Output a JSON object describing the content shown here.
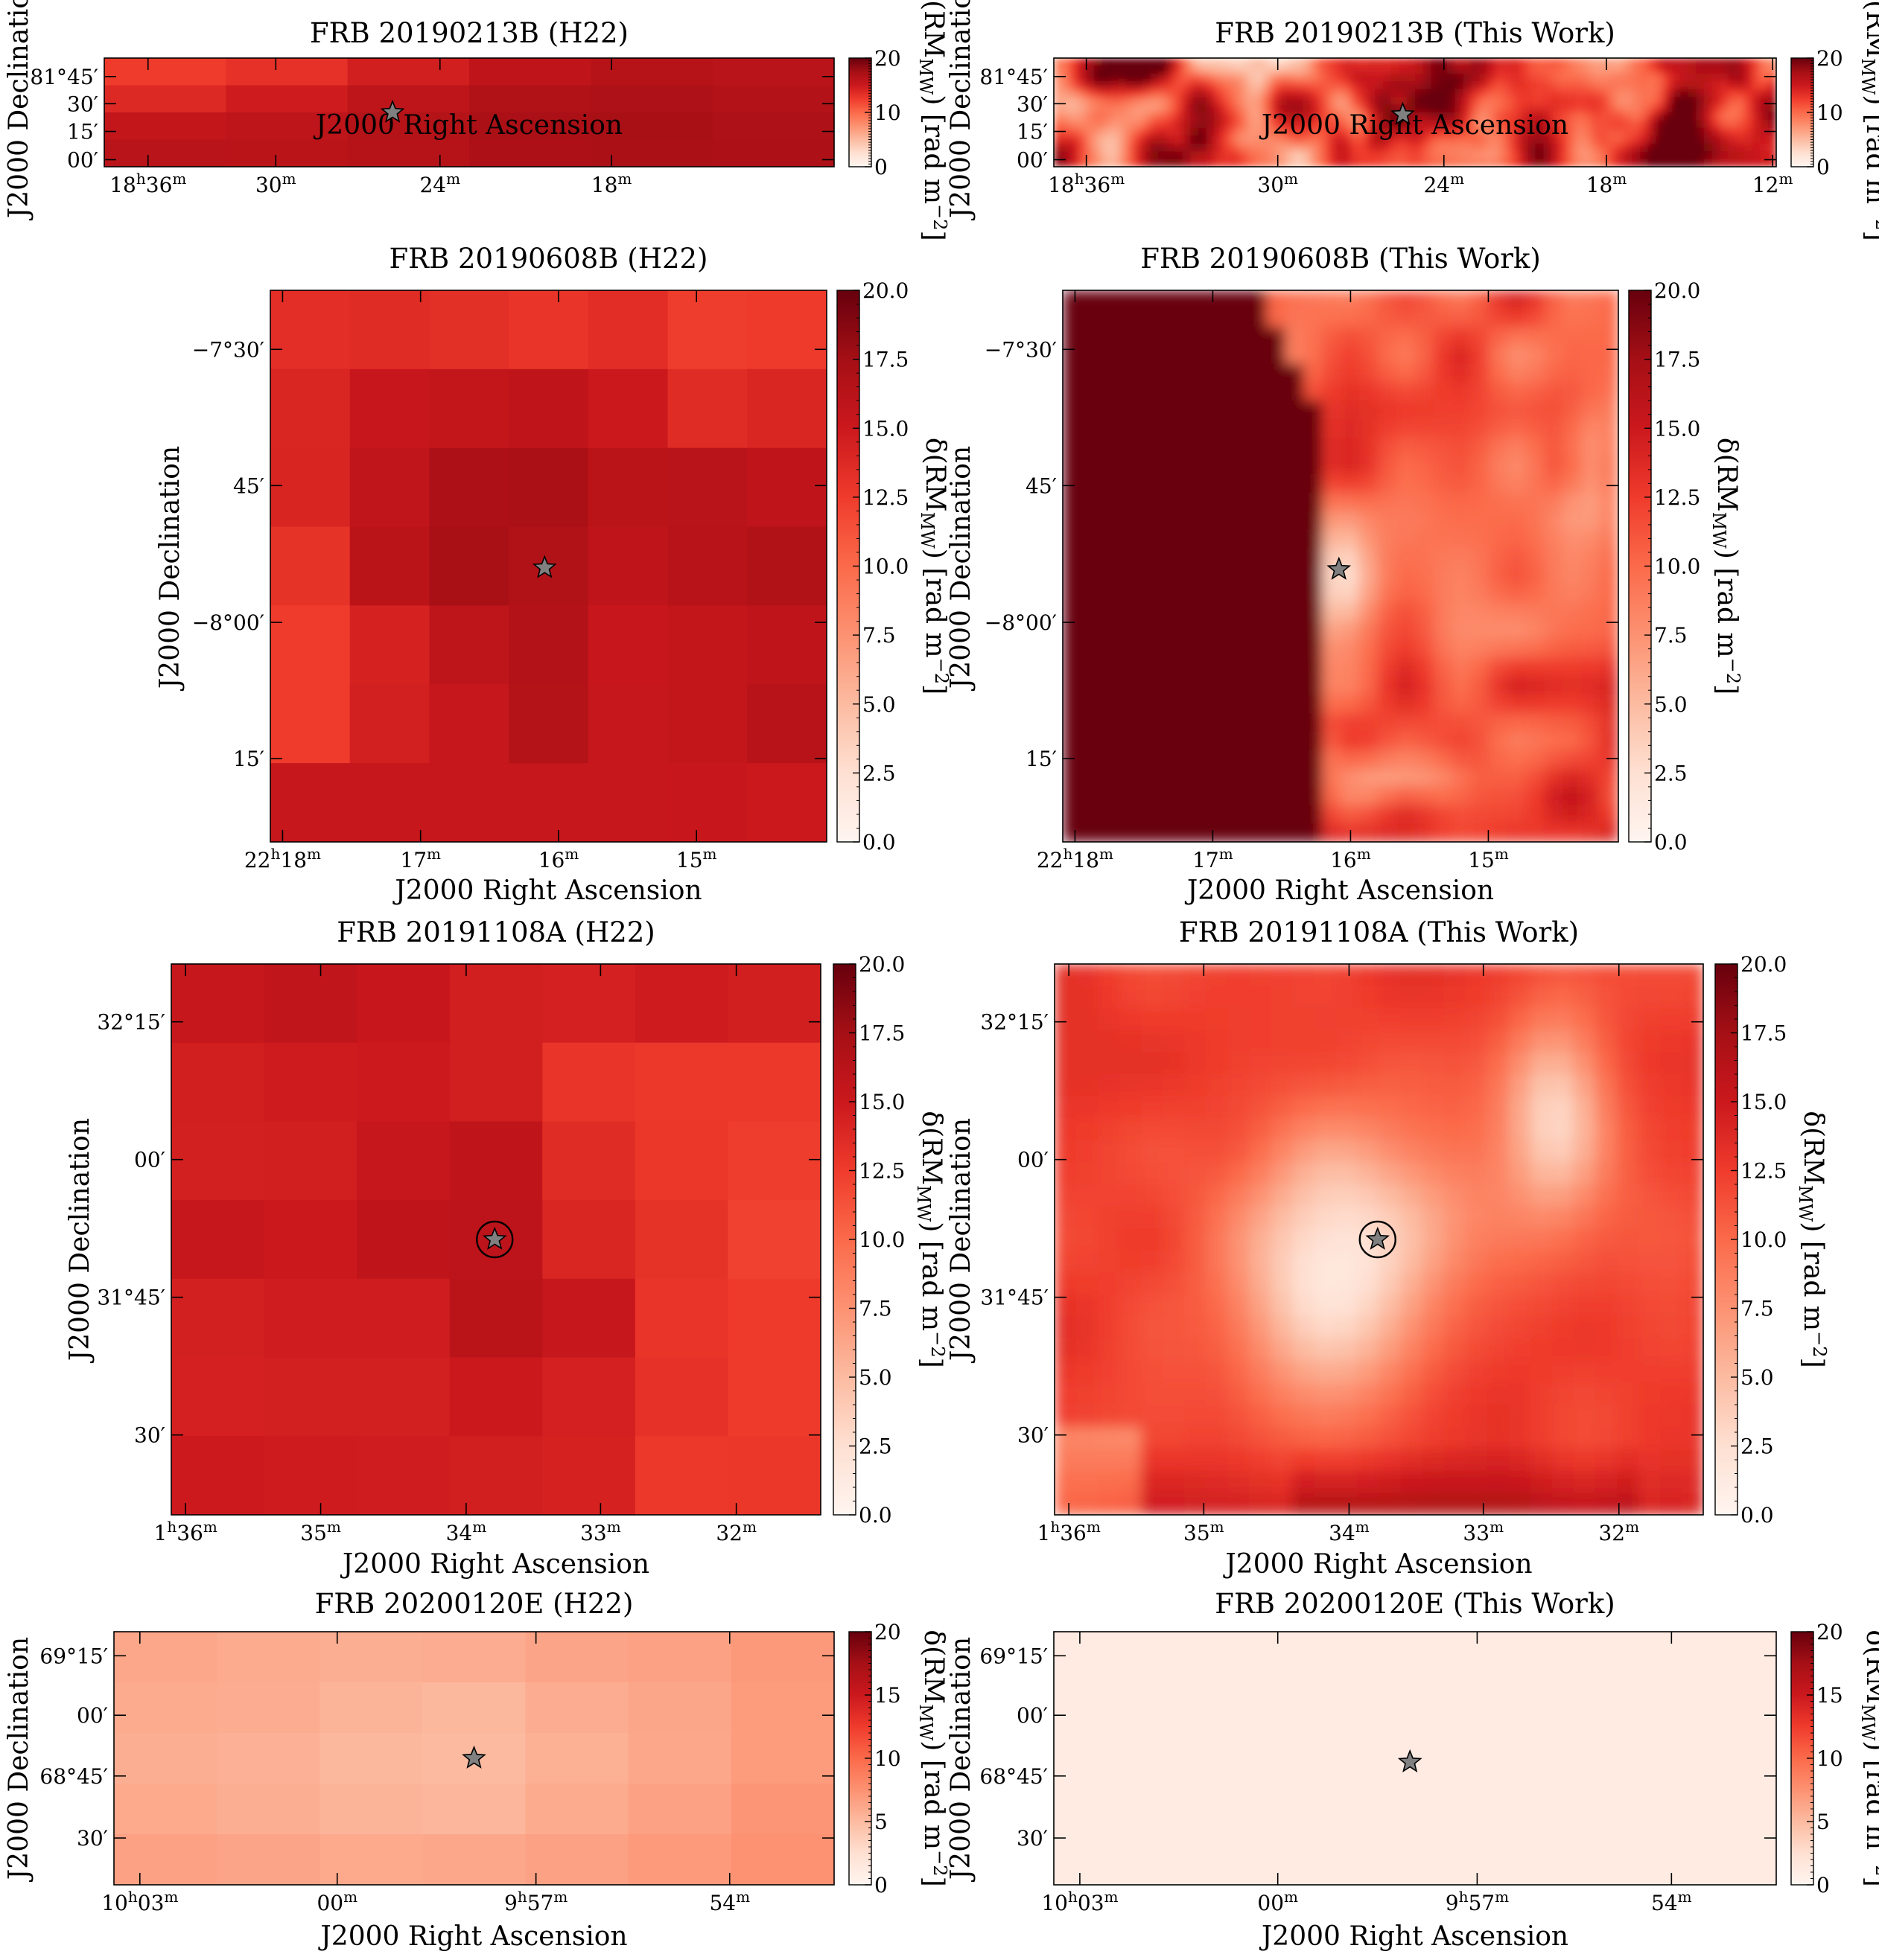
{
  "figure": {
    "colormap": "Reds",
    "colors": {
      "cmap_low": "#fff5f0",
      "cmap_high": "#67000d",
      "star_fill": "#808080",
      "axis": "#000000"
    },
    "x_axis_label": "J2000 Right Ascension",
    "y_axis_label": "J2000 Declination",
    "colorbar_label": "δ(RM_MW) [rad m⁻²]"
  },
  "chart_data": [
    {
      "type": "heatmap",
      "title": "FRB 20190213B (H22)",
      "source": "H22",
      "grid": [
        6,
        4
      ],
      "smooth": false,
      "fill": "block-field",
      "vmin": 0,
      "vmax": 20,
      "x_ticks": [
        "18h36m",
        "30m",
        "24m",
        "18m"
      ],
      "y_ticks": [
        "81°45′",
        "30′",
        "15′",
        "00′"
      ],
      "cbar_ticks": [
        "0",
        "10",
        "20"
      ],
      "values": [
        [
          12.5,
          13.2,
          14.6,
          15.8,
          16.4,
          16.2
        ],
        [
          13.8,
          14.8,
          15.9,
          16.7,
          16.9,
          16.6
        ],
        [
          15.6,
          15.9,
          16.5,
          17.1,
          17.3,
          16.9
        ],
        [
          16.2,
          16.1,
          16.4,
          17.0,
          17.2,
          17.0
        ]
      ],
      "circle": false
    },
    {
      "type": "heatmap",
      "title": "FRB 20190213B (This Work)",
      "source": "This Work",
      "grid": [
        90,
        14
      ],
      "smooth": true,
      "fill": "noise",
      "vmin": 0,
      "vmax": 20,
      "x_ticks": [
        "18h36m",
        "30m",
        "24m",
        "18m",
        "12m"
      ],
      "y_ticks": [
        "81°45′",
        "30′",
        "15′",
        "00′"
      ],
      "cbar_ticks": [
        "0",
        "10",
        "20"
      ],
      "circle": false
    },
    {
      "type": "heatmap",
      "title": "FRB 20190608B (H22)",
      "source": "H22",
      "grid": [
        7,
        7
      ],
      "smooth": false,
      "fill": "table",
      "vmin": 0,
      "vmax": 20,
      "x_ticks": [
        "22h18m",
        "17m",
        "16m",
        "15m"
      ],
      "y_ticks": [
        "−7°30′",
        "45′",
        "−8°00′",
        "15′"
      ],
      "cbar_ticks": [
        "0.0",
        "2.5",
        "5.0",
        "7.5",
        "10.0",
        "12.5",
        "15.0",
        "17.5",
        "20.0"
      ],
      "values": [
        [
          13.4,
          13.6,
          13.3,
          13.0,
          13.5,
          12.4,
          12.6
        ],
        [
          14.0,
          15.2,
          15.6,
          15.8,
          15.0,
          13.6,
          14.0
        ],
        [
          14.1,
          15.7,
          17.0,
          17.1,
          16.1,
          16.2,
          15.8
        ],
        [
          13.1,
          16.1,
          17.3,
          16.7,
          15.8,
          16.3,
          16.7
        ],
        [
          12.5,
          14.3,
          15.9,
          16.6,
          15.2,
          15.6,
          15.8
        ],
        [
          12.5,
          14.5,
          15.3,
          16.5,
          15.3,
          15.6,
          16.3
        ],
        [
          15.4,
          15.4,
          15.4,
          15.4,
          15.4,
          15.2,
          15.0
        ]
      ],
      "circle": false
    },
    {
      "type": "heatmap",
      "title": "FRB 20190608B (This Work)",
      "source": "This Work",
      "grid": [
        30,
        30
      ],
      "smooth": true,
      "fill": "field",
      "vmin": 0,
      "vmax": 20,
      "x_ticks": [
        "22h18m",
        "17m",
        "16m",
        "15m"
      ],
      "y_ticks": [
        "−7°30′",
        "45′",
        "−8°00′",
        "15′"
      ],
      "cbar_ticks": [
        "0.0",
        "2.5",
        "5.0",
        "7.5",
        "10.0",
        "12.5",
        "15.0",
        "17.5",
        "20.0"
      ],
      "circle": false
    },
    {
      "type": "heatmap",
      "title": "FRB 20191108A (H22)",
      "source": "H22",
      "grid": [
        7,
        7
      ],
      "smooth": false,
      "fill": "table",
      "vmin": 0,
      "vmax": 20,
      "x_ticks": [
        "1h36m",
        "35m",
        "34m",
        "33m",
        "32m"
      ],
      "y_ticks": [
        "32°15′",
        "00′",
        "31°45′",
        "30′"
      ],
      "cbar_ticks": [
        "0.0",
        "2.5",
        "5.0",
        "7.5",
        "10.0",
        "12.5",
        "15.0",
        "17.5",
        "20.0"
      ],
      "values": [
        [
          15.3,
          15.7,
          15.2,
          14.6,
          14.4,
          14.8,
          14.6
        ],
        [
          14.6,
          14.8,
          14.9,
          14.6,
          13.0,
          12.7,
          12.7
        ],
        [
          14.5,
          14.6,
          15.4,
          15.8,
          13.6,
          12.8,
          12.4
        ],
        [
          15.3,
          15.0,
          15.8,
          16.0,
          14.0,
          13.1,
          12.2
        ],
        [
          14.5,
          14.7,
          14.7,
          16.1,
          15.3,
          13.0,
          12.6
        ],
        [
          14.4,
          14.5,
          14.5,
          15.0,
          14.4,
          13.2,
          12.6
        ],
        [
          14.9,
          14.8,
          14.7,
          14.6,
          14.3,
          12.7,
          12.8
        ]
      ],
      "circle": true
    },
    {
      "type": "heatmap",
      "title": "FRB 20191108A (This Work)",
      "source": "This Work",
      "grid": [
        30,
        25
      ],
      "smooth": true,
      "fill": "field",
      "vmin": 0,
      "vmax": 20,
      "x_ticks": [
        "1h36m",
        "35m",
        "34m",
        "33m",
        "32m"
      ],
      "y_ticks": [
        "32°15′",
        "00′",
        "31°45′",
        "30′"
      ],
      "cbar_ticks": [
        "0.0",
        "2.5",
        "5.0",
        "7.5",
        "10.0",
        "12.5",
        "15.0",
        "17.5",
        "20.0"
      ],
      "circle": true
    },
    {
      "type": "heatmap",
      "title": "FRB 20200120E (H22)",
      "source": "H22",
      "grid": [
        7,
        5
      ],
      "smooth": false,
      "fill": "table",
      "vmin": 0,
      "vmax": 20,
      "x_ticks": [
        "10h03m",
        "00m",
        "9h57m",
        "54m"
      ],
      "y_ticks": [
        "69°15′",
        "00′",
        "68°45′",
        "30′"
      ],
      "cbar_ticks": [
        "0",
        "5",
        "10",
        "15",
        "20"
      ],
      "values": [
        [
          6.2,
          6.0,
          5.8,
          5.9,
          6.4,
          6.6,
          7.1
        ],
        [
          6.0,
          5.9,
          5.4,
          5.2,
          5.9,
          6.3,
          6.9
        ],
        [
          5.8,
          5.6,
          5.2,
          5.0,
          5.7,
          6.2,
          6.9
        ],
        [
          6.1,
          5.8,
          5.4,
          5.3,
          6.0,
          6.6,
          7.3
        ],
        [
          6.6,
          6.4,
          6.1,
          6.2,
          6.6,
          7.0,
          7.5
        ]
      ],
      "circle": false
    },
    {
      "type": "heatmap",
      "title": "FRB 20200120E (This Work)",
      "source": "This Work",
      "grid": [
        1,
        1
      ],
      "smooth": false,
      "fill": "uniform",
      "vmin": 0,
      "vmax": 20,
      "uniform_value": 1.2,
      "x_ticks": [
        "10h03m",
        "00m",
        "9h57m",
        "54m"
      ],
      "y_ticks": [
        "69°15′",
        "00′",
        "68°45′",
        "30′"
      ],
      "cbar_ticks": [
        "0",
        "5",
        "10",
        "15",
        "20"
      ],
      "circle": false
    }
  ]
}
